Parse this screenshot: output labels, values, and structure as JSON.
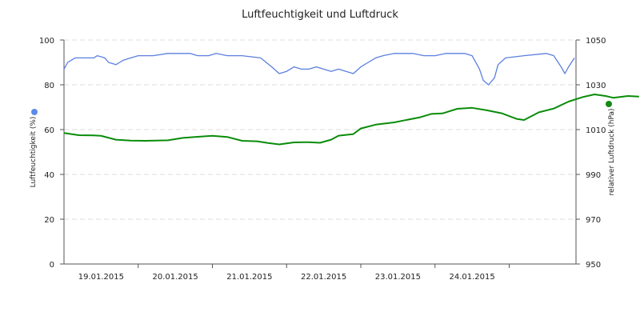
{
  "chart_data": {
    "type": "line",
    "title": "Luftfeuchtigkeit und Luftdruck",
    "y_left": {
      "label": "Luftfeuchtigkeit (%)",
      "min": 0,
      "max": 100,
      "ticks": [
        "0",
        "20",
        "40",
        "60",
        "80",
        "100"
      ]
    },
    "y_right": {
      "label": "relativer Luftdruck (hPa)",
      "min": 950,
      "max": 1050,
      "ticks": [
        "950",
        "970",
        "990",
        "1010",
        "1030",
        "1050"
      ]
    },
    "x_categories": [
      "19.01.2015",
      "20.01.2015",
      "21.01.2015",
      "22.01.2015",
      "23.01.2015",
      "24.01.2015"
    ],
    "x_range_days": [
      0,
      6.9
    ],
    "grid": true,
    "series": [
      {
        "name": "Luftfeuchtigkeit",
        "axis": "left",
        "color": "#5b7fe0",
        "marker_color": "#5b8be8",
        "points": [
          [
            0.0,
            87
          ],
          [
            0.05,
            90
          ],
          [
            0.15,
            92
          ],
          [
            0.3,
            92
          ],
          [
            0.4,
            92
          ],
          [
            0.45,
            93
          ],
          [
            0.55,
            92
          ],
          [
            0.6,
            90
          ],
          [
            0.7,
            89
          ],
          [
            0.75,
            90
          ],
          [
            0.8,
            91
          ],
          [
            0.9,
            92
          ],
          [
            1.0,
            93
          ],
          [
            1.2,
            93
          ],
          [
            1.4,
            94
          ],
          [
            1.7,
            94
          ],
          [
            1.8,
            93
          ],
          [
            1.95,
            93
          ],
          [
            2.05,
            94
          ],
          [
            2.2,
            93
          ],
          [
            2.4,
            93
          ],
          [
            2.65,
            92
          ],
          [
            2.8,
            88
          ],
          [
            2.9,
            85
          ],
          [
            3.0,
            86
          ],
          [
            3.1,
            88
          ],
          [
            3.2,
            87
          ],
          [
            3.3,
            87
          ],
          [
            3.4,
            88
          ],
          [
            3.5,
            87
          ],
          [
            3.6,
            86
          ],
          [
            3.7,
            87
          ],
          [
            3.8,
            86
          ],
          [
            3.9,
            85
          ],
          [
            4.0,
            88
          ],
          [
            4.1,
            90
          ],
          [
            4.2,
            92
          ],
          [
            4.3,
            93
          ],
          [
            4.45,
            94
          ],
          [
            4.7,
            94
          ],
          [
            4.85,
            93
          ],
          [
            5.0,
            93
          ],
          [
            5.15,
            94
          ],
          [
            5.4,
            94
          ],
          [
            5.5,
            93
          ],
          [
            5.6,
            87
          ],
          [
            5.65,
            82
          ],
          [
            5.72,
            80
          ],
          [
            5.8,
            83
          ],
          [
            5.85,
            89
          ],
          [
            5.95,
            92
          ],
          [
            6.2,
            93
          ],
          [
            6.5,
            94
          ],
          [
            6.6,
            93
          ],
          [
            6.7,
            88
          ],
          [
            6.75,
            85
          ],
          [
            6.8,
            88
          ],
          [
            6.88,
            92
          ]
        ]
      },
      {
        "name": "relativer Luftdruck",
        "axis": "right",
        "color": "#0a8c0a",
        "marker_color": "#138a13",
        "points": [
          [
            0.0,
            1008.5
          ],
          [
            0.2,
            1007.5
          ],
          [
            0.4,
            1007.4
          ],
          [
            0.5,
            1007.2
          ],
          [
            0.7,
            1005.5
          ],
          [
            0.9,
            1005.1
          ],
          [
            1.1,
            1005.0
          ],
          [
            1.4,
            1005.2
          ],
          [
            1.6,
            1006.3
          ],
          [
            1.8,
            1006.8
          ],
          [
            2.0,
            1007.2
          ],
          [
            2.2,
            1006.7
          ],
          [
            2.4,
            1005.0
          ],
          [
            2.6,
            1004.8
          ],
          [
            2.75,
            1004.0
          ],
          [
            2.9,
            1003.4
          ],
          [
            3.1,
            1004.3
          ],
          [
            3.3,
            1004.4
          ],
          [
            3.45,
            1004.1
          ],
          [
            3.6,
            1005.5
          ],
          [
            3.7,
            1007.3
          ],
          [
            3.9,
            1008.0
          ],
          [
            4.0,
            1010.5
          ],
          [
            4.2,
            1012.2
          ],
          [
            4.45,
            1013.2
          ],
          [
            4.6,
            1014.2
          ],
          [
            4.8,
            1015.5
          ],
          [
            4.95,
            1017.0
          ],
          [
            5.1,
            1017.2
          ],
          [
            5.3,
            1019.3
          ],
          [
            5.5,
            1019.7
          ],
          [
            5.7,
            1018.6
          ],
          [
            5.9,
            1017.3
          ],
          [
            6.1,
            1014.8
          ],
          [
            6.2,
            1014.3
          ],
          [
            6.4,
            1017.7
          ],
          [
            6.6,
            1019.4
          ],
          [
            6.8,
            1022.5
          ],
          [
            7.0,
            1024.6
          ],
          [
            7.15,
            1025.7
          ],
          [
            7.3,
            1025.0
          ],
          [
            7.4,
            1024.2
          ],
          [
            7.6,
            1025.0
          ],
          [
            7.75,
            1024.7
          ]
        ]
      }
    ]
  }
}
